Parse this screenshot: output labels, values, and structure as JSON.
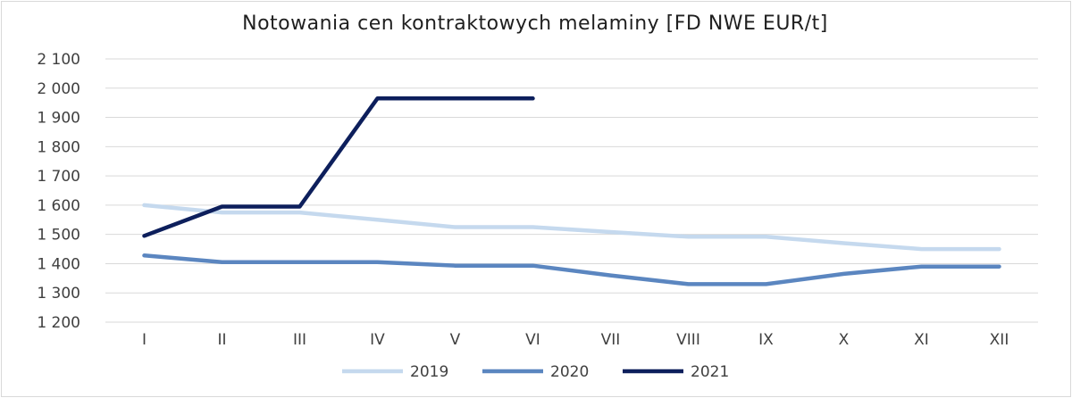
{
  "chart_data": {
    "type": "line",
    "title": "Notowania cen kontraktowych melaminy [FD NWE EUR/t]",
    "categories": [
      "I",
      "II",
      "III",
      "IV",
      "V",
      "VI",
      "VII",
      "VIII",
      "IX",
      "X",
      "XI",
      "XII"
    ],
    "y_ticks": [
      "1 200",
      "1 300",
      "1 400",
      "1 500",
      "1 600",
      "1 700",
      "1 800",
      "1 900",
      "2 000",
      "2 100"
    ],
    "ylim": [
      1200,
      2100
    ],
    "grid": "horizontal",
    "legend_position": "bottom",
    "series": [
      {
        "name": "2019",
        "color": "#c5d9ee",
        "values": [
          1600,
          1575,
          1575,
          1550,
          1525,
          1525,
          1508,
          1492,
          1492,
          1470,
          1450,
          1450
        ]
      },
      {
        "name": "2020",
        "color": "#5b86c0",
        "values": [
          1428,
          1405,
          1405,
          1405,
          1393,
          1393,
          1360,
          1330,
          1330,
          1365,
          1390,
          1390
        ]
      },
      {
        "name": "2021",
        "color": "#0d1f5c",
        "values": [
          1495,
          1595,
          1595,
          1965,
          1965,
          1965,
          null,
          null,
          null,
          null,
          null,
          null
        ]
      }
    ]
  }
}
